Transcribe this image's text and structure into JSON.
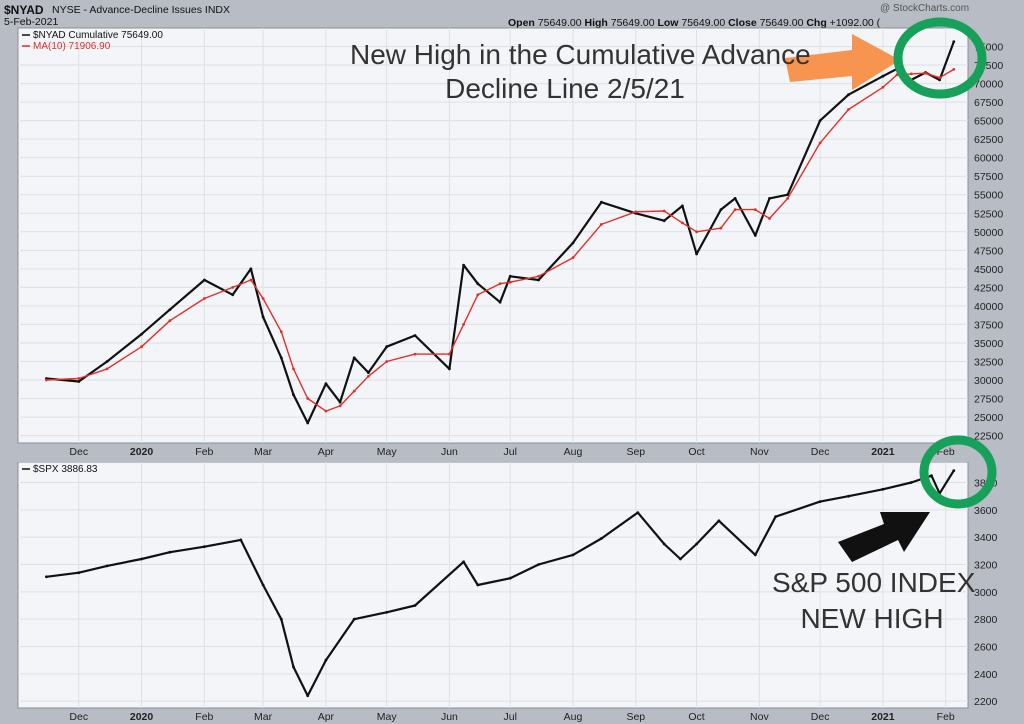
{
  "header": {
    "symbol": "$NYAD",
    "description": "NYSE - Advance-Decline Issues INDX",
    "date": "5-Feb-2021",
    "open_label": "Open",
    "open": "75649.00",
    "high_label": "High",
    "high": "75649.00",
    "low_label": "Low",
    "low": "75649.00",
    "close_label": "Close",
    "close": "75649.00",
    "chg_label": "Chg",
    "chg": "+1092.00 (",
    "watermark": "@ StockCharts.com"
  },
  "annotations": {
    "top_line1": "New High in the Cumulative Advance",
    "top_line2": "Decline Line 2/5/21",
    "bottom_line1": "S&P 500 INDEX",
    "bottom_line2": "NEW HIGH"
  },
  "colors": {
    "price": "#111111",
    "ma": "#e0302a",
    "arrow_orange": "#f7944f",
    "arrow_black": "#111111",
    "circle_green": "#16a05a",
    "panel_bg": "#f4f5f8",
    "grid": "#dde0e6"
  },
  "chart_data": [
    {
      "type": "line",
      "legend": [
        "$NYAD Cumulative 75649.00",
        "MA(10) 71906.90"
      ],
      "legend_placement": "top-left",
      "x_ticks": [
        "Dec",
        "2020",
        "Feb",
        "Mar",
        "Apr",
        "May",
        "Jun",
        "Jul",
        "Aug",
        "Sep",
        "Oct",
        "Nov",
        "Dec",
        "2021",
        "Feb"
      ],
      "y_ticks": [
        22500,
        25000,
        27500,
        30000,
        32500,
        35000,
        37500,
        40000,
        42500,
        45000,
        47500,
        50000,
        52500,
        55000,
        57500,
        60000,
        62500,
        65000,
        67500,
        70000,
        72500,
        75000
      ],
      "ylim": [
        21500,
        77500
      ],
      "grid": true,
      "x": [
        "2019-11-15",
        "2019-12-01",
        "2019-12-15",
        "2020-01-01",
        "2020-01-15",
        "2020-02-01",
        "2020-02-15",
        "2020-02-24",
        "2020-03-01",
        "2020-03-10",
        "2020-03-16",
        "2020-03-23",
        "2020-04-01",
        "2020-04-08",
        "2020-04-15",
        "2020-04-22",
        "2020-05-01",
        "2020-05-15",
        "2020-06-01",
        "2020-06-08",
        "2020-06-15",
        "2020-06-26",
        "2020-07-01",
        "2020-07-15",
        "2020-08-01",
        "2020-08-15",
        "2020-09-01",
        "2020-09-15",
        "2020-09-24",
        "2020-10-01",
        "2020-10-13",
        "2020-10-20",
        "2020-10-30",
        "2020-11-06",
        "2020-11-15",
        "2020-12-01",
        "2020-12-15",
        "2021-01-01",
        "2021-01-08",
        "2021-01-15",
        "2021-01-22",
        "2021-01-29",
        "2021-02-05"
      ],
      "series": [
        {
          "name": "$NYAD Cumulative",
          "values": [
            30200,
            29800,
            32500,
            36200,
            39500,
            43500,
            41500,
            45000,
            38500,
            33000,
            28000,
            24200,
            29500,
            27000,
            33000,
            31000,
            34500,
            36000,
            31500,
            45500,
            43000,
            40500,
            44000,
            43500,
            48500,
            54000,
            52500,
            51500,
            53500,
            47000,
            53000,
            54500,
            49500,
            54500,
            55000,
            65000,
            68500,
            71000,
            72000,
            70500,
            71500,
            70500,
            75649
          ]
        },
        {
          "name": "MA(10)",
          "values": [
            30000,
            30200,
            31500,
            34500,
            38000,
            41000,
            42500,
            43500,
            41000,
            36500,
            31500,
            27500,
            25800,
            26500,
            28500,
            30500,
            32500,
            33500,
            33500,
            37500,
            41500,
            43000,
            43200,
            44000,
            46500,
            51000,
            52700,
            52800,
            51200,
            50000,
            50500,
            53000,
            53000,
            51800,
            54500,
            62000,
            66500,
            69500,
            71200,
            71300,
            71400,
            70800,
            71907
          ]
        }
      ]
    },
    {
      "type": "line",
      "legend": [
        "$SPX 3886.83"
      ],
      "legend_placement": "top-left",
      "x_ticks": [
        "Dec",
        "2020",
        "Feb",
        "Mar",
        "Apr",
        "May",
        "Jun",
        "Jul",
        "Aug",
        "Sep",
        "Oct",
        "Nov",
        "Dec",
        "2021",
        "Feb"
      ],
      "y_ticks": [
        2200,
        2400,
        2600,
        2800,
        3000,
        3200,
        3400,
        3600,
        3800
      ],
      "ylim": [
        2150,
        3950
      ],
      "grid": true,
      "x": [
        "2019-11-15",
        "2019-12-01",
        "2019-12-15",
        "2020-01-01",
        "2020-01-15",
        "2020-02-01",
        "2020-02-19",
        "2020-03-01",
        "2020-03-10",
        "2020-03-16",
        "2020-03-23",
        "2020-04-01",
        "2020-04-15",
        "2020-05-01",
        "2020-05-15",
        "2020-06-08",
        "2020-06-15",
        "2020-07-01",
        "2020-07-15",
        "2020-08-01",
        "2020-08-15",
        "2020-09-02",
        "2020-09-15",
        "2020-09-23",
        "2020-10-01",
        "2020-10-12",
        "2020-10-30",
        "2020-11-09",
        "2020-12-01",
        "2020-12-15",
        "2021-01-01",
        "2021-01-15",
        "2021-01-25",
        "2021-01-29",
        "2021-02-05"
      ],
      "series": [
        {
          "name": "$SPX",
          "values": [
            3110,
            3140,
            3190,
            3240,
            3290,
            3330,
            3380,
            3050,
            2800,
            2450,
            2240,
            2500,
            2800,
            2850,
            2900,
            3220,
            3050,
            3100,
            3200,
            3270,
            3390,
            3580,
            3350,
            3240,
            3350,
            3520,
            3270,
            3550,
            3660,
            3700,
            3750,
            3800,
            3850,
            3720,
            3886.83
          ]
        }
      ]
    }
  ]
}
